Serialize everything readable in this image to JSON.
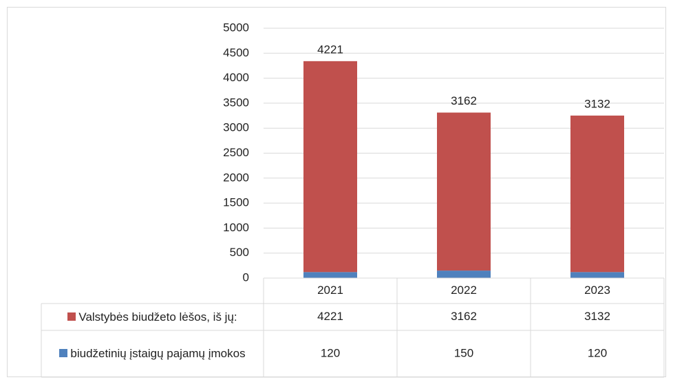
{
  "chart_data": {
    "type": "stacked_bar",
    "categories": [
      "2021",
      "2022",
      "2023"
    ],
    "series": [
      {
        "name": "Valstybės biudžeto lėšos, iš jų:",
        "color": "#c0504d",
        "values": [
          4221,
          3162,
          3132
        ]
      },
      {
        "name": "biudžetinių įstaigų pajamų įmokos",
        "color": "#4f81bd",
        "values": [
          120,
          150,
          120
        ]
      }
    ],
    "ylim": [
      0,
      5000
    ],
    "yticks": [
      0,
      500,
      1000,
      1500,
      2000,
      2500,
      3000,
      3500,
      4000,
      4500,
      5000
    ],
    "grid": true
  }
}
